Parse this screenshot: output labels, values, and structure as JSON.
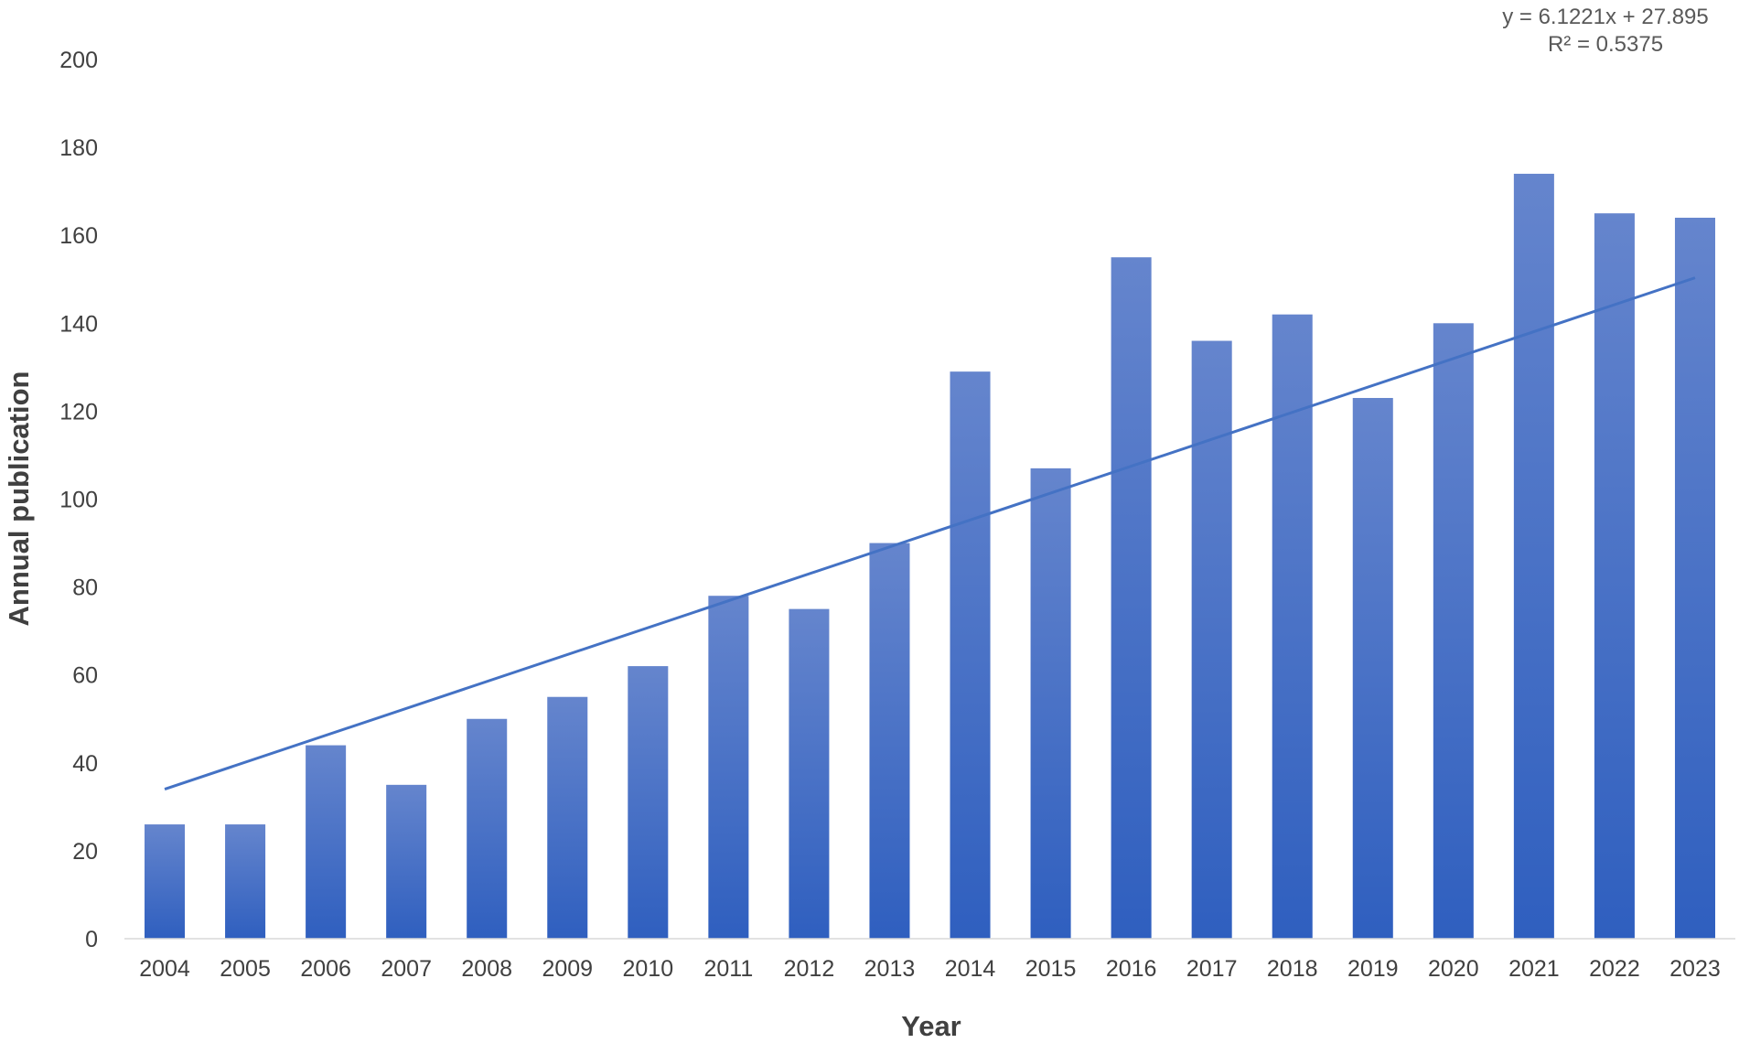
{
  "chart_data": {
    "type": "bar",
    "title": "",
    "xlabel": "Year",
    "ylabel": "Annual publication",
    "categories": [
      "2004",
      "2005",
      "2006",
      "2007",
      "2008",
      "2009",
      "2010",
      "2011",
      "2012",
      "2013",
      "2014",
      "2015",
      "2016",
      "2017",
      "2018",
      "2019",
      "2020",
      "2021",
      "2022",
      "2023"
    ],
    "values": [
      26,
      26,
      44,
      35,
      50,
      55,
      62,
      78,
      75,
      90,
      129,
      107,
      155,
      136,
      142,
      123,
      140,
      174,
      165,
      164
    ],
    "ylim": [
      0,
      200
    ],
    "yticks": [
      0,
      20,
      40,
      60,
      80,
      100,
      120,
      140,
      160,
      180,
      200
    ],
    "grid": false,
    "legend": "none",
    "trendline": {
      "type": "linear",
      "slope": 6.1221,
      "intercept": 27.895,
      "equation_label": "y = 6.1221x + 27.895",
      "r2_label": "R² = 0.5375"
    },
    "colors": {
      "bar_top": "#6585cd",
      "bar_bottom": "#2f5fbf",
      "trendline": "#4472c4",
      "axis_line": "#d9d9d9",
      "text": "#404040"
    }
  }
}
